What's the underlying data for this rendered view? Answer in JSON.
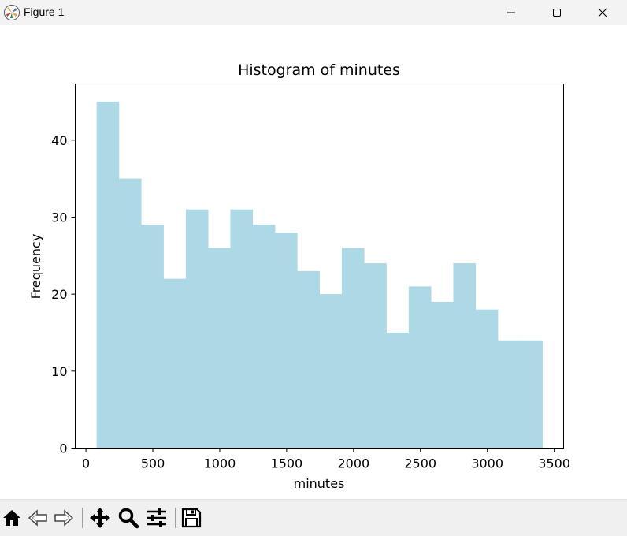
{
  "window": {
    "title": "Figure 1",
    "icons": [
      "matplotlib-logo-icon",
      "minimize-icon",
      "maximize-icon",
      "close-icon"
    ]
  },
  "toolbar": {
    "tools": [
      "home-icon",
      "back-icon",
      "forward-icon",
      "pan-icon",
      "zoom-icon",
      "configure-subplots-icon",
      "save-icon"
    ]
  },
  "chart_data": {
    "type": "histogram",
    "title": "Histogram of minutes",
    "xlabel": "minutes",
    "ylabel": "Frequency",
    "xlim": [
      -80,
      3570
    ],
    "ylim": [
      0,
      47.3
    ],
    "xticks": [
      0,
      500,
      1000,
      1500,
      2000,
      2500,
      3000,
      3500
    ],
    "yticks": [
      0,
      10,
      20,
      30,
      40
    ],
    "bin_start": 80,
    "bin_width": 166.6,
    "counts": [
      45,
      35,
      29,
      22,
      31,
      26,
      31,
      29,
      28,
      23,
      20,
      26,
      24,
      15,
      21,
      19,
      24,
      18,
      14,
      14
    ],
    "bar_color": "#add8e6",
    "grid": false,
    "legend": "none"
  }
}
